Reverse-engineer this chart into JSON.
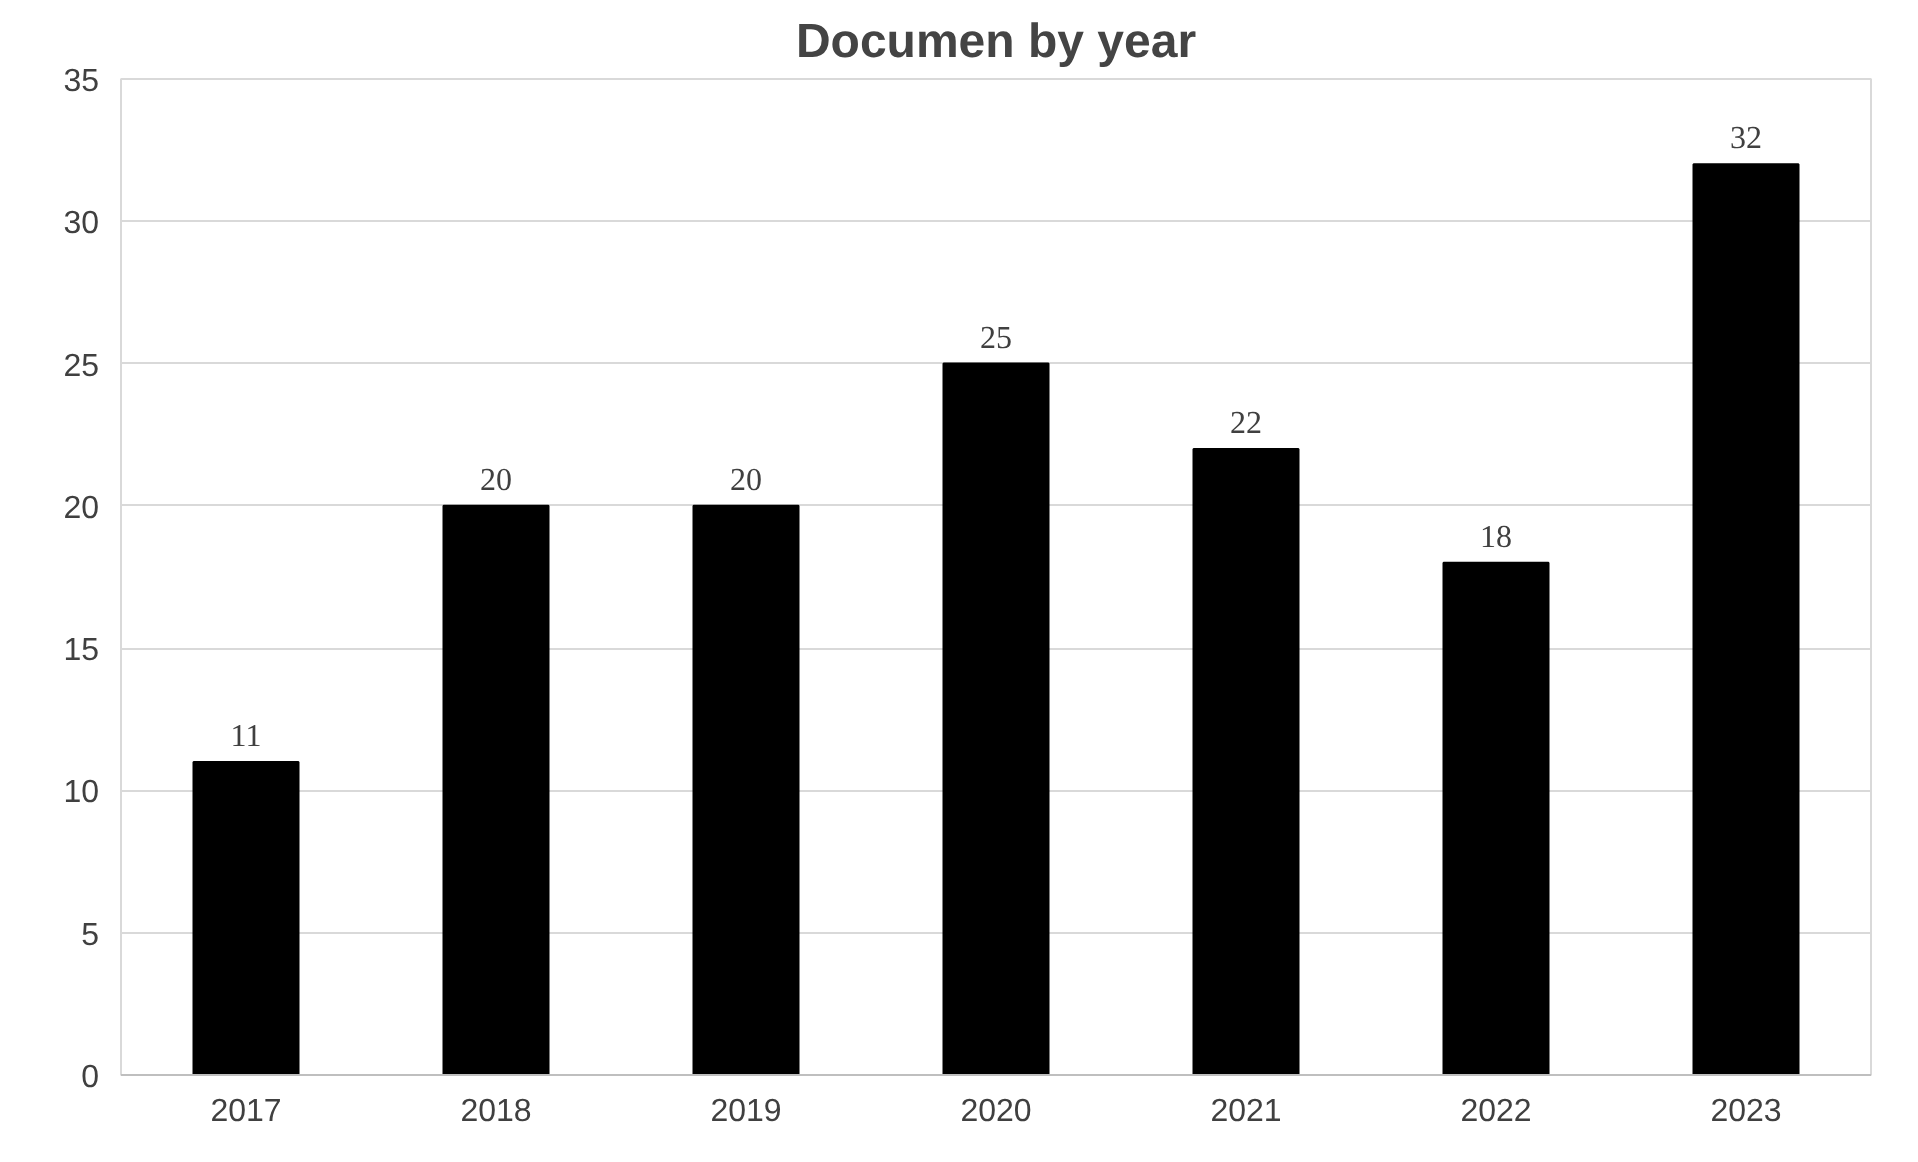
{
  "chart_data": {
    "type": "bar",
    "title": "Documen by year",
    "categories": [
      "2017",
      "2018",
      "2019",
      "2020",
      "2021",
      "2022",
      "2023"
    ],
    "values": [
      11,
      20,
      20,
      25,
      22,
      18,
      32
    ],
    "color": "#000000",
    "ylim": [
      0,
      35
    ],
    "yticks": [
      0,
      5,
      10,
      15,
      20,
      25,
      30,
      35
    ],
    "grid": "y",
    "data_labels": true
  }
}
